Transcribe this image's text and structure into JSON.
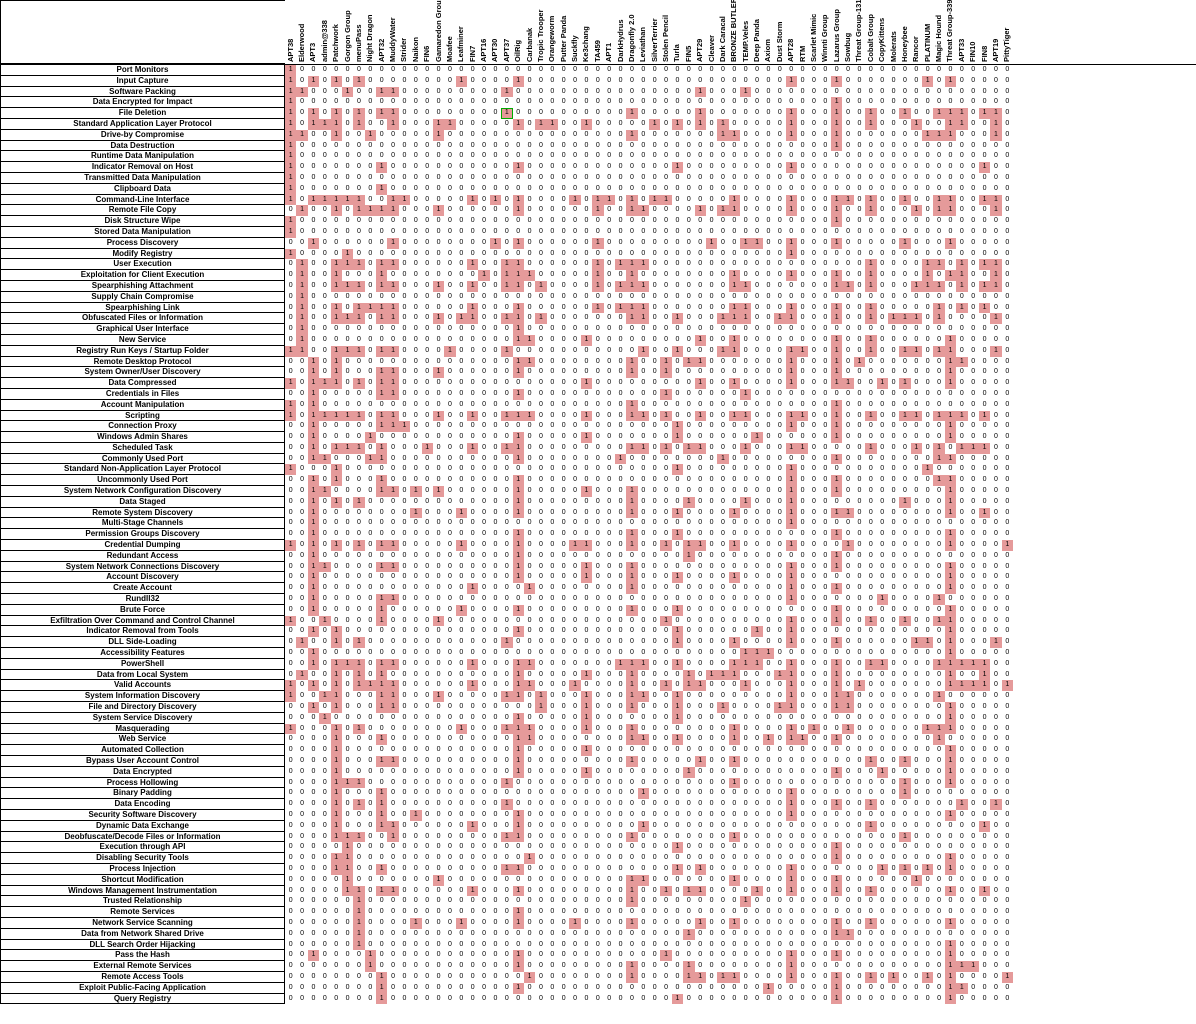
{
  "type": "heatmap",
  "colors": {
    "hit": "#e59a9a",
    "miss": "#ffffff",
    "border": "#000000",
    "highlight_border": "#00aa00",
    "text": "#000000"
  },
  "columns": [
    "APT38",
    "Elderwood",
    "APT3",
    "admin@338",
    "Patchwork",
    "Gorgon Group",
    "menuPass",
    "Night Dragon",
    "APT32",
    "MuddyWater",
    "Strider",
    "Naikon",
    "FIN6",
    "Gamaredon Group",
    "Moafee",
    "Leafminer",
    "FIN7",
    "APT16",
    "APT30",
    "APT37",
    "OilRig",
    "Carbanak",
    "Tropic Trooper",
    "Orangeworm",
    "Putter Panda",
    "Suckfly",
    "Ke3chang",
    "TA459",
    "APT1",
    "DarkHydrus",
    "Dragonfly 2.0",
    "Leviathan",
    "SilverTerrier",
    "Stolen Pencil",
    "Turla",
    "FIN5",
    "APT29",
    "Cleaver",
    "Dark Caracal",
    "BRONZE BUTLER",
    "TEMP.Veles",
    "Deep Panda",
    "Axiom",
    "Dust Storm",
    "APT28",
    "RTM",
    "Scarlet Mimic",
    "Winnti Group",
    "Lazarus Group",
    "Sowbug",
    "Threat Group-1314",
    "Cobalt Group",
    "CopyKittens",
    "Molerats",
    "Honeybee",
    "Rancor",
    "PLATINUM",
    "Magic Hound",
    "Threat Group-3390",
    "APT33",
    "FIN10",
    "FIN8",
    "APT19",
    "PittyTiger"
  ],
  "row_labels": [
    "Port Monitors",
    "Input Capture",
    "Software Packing",
    "Data Encrypted for Impact",
    "File Deletion",
    "Standard Application Layer Protocol",
    "Drive-by Compromise",
    "Data Destruction",
    "Runtime Data Manipulation",
    "Indicator Removal on Host",
    "Transmitted Data Manipulation",
    "Clipboard Data",
    "Command-Line Interface",
    "Remote File Copy",
    "Disk Structure Wipe",
    "Stored Data Manipulation",
    "Process Discovery",
    "Modify Registry",
    "User Execution",
    "Exploitation for Client Execution",
    "Spearphishing Attachment",
    "Supply Chain Compromise",
    "Spearphishing Link",
    "Obfuscated Files or Information",
    "Graphical User Interface",
    "New Service",
    "Registry Run Keys / Startup Folder",
    "Remote Desktop Protocol",
    "System Owner/User Discovery",
    "Data Compressed",
    "Credentials in Files",
    "Account Manipulation",
    "Scripting",
    "Connection Proxy",
    "Windows Admin Shares",
    "Scheduled Task",
    "Commonly Used Port",
    "Standard Non-Application Layer Protocol",
    "Uncommonly Used Port",
    "System Network Configuration Discovery",
    "Data Staged",
    "Remote System Discovery",
    "Multi-Stage Channels",
    "Permission Groups Discovery",
    "Credential Dumping",
    "Redundant Access",
    "System Network Connections Discovery",
    "Account Discovery",
    "Create Account",
    "Rundll32",
    "Brute Force",
    "Exfiltration Over Command and Control Channel",
    "Indicator Removal from Tools",
    "DLL Side-Loading",
    "Accessibility Features",
    "PowerShell",
    "Data from Local System",
    "Valid Accounts",
    "System Information Discovery",
    "File and Directory Discovery",
    "System Service Discovery",
    "Masquerading",
    "Web Service",
    "Automated Collection",
    "Bypass User Account Control",
    "Data Encrypted",
    "Process Hollowing",
    "Binary Padding",
    "Data Encoding",
    "Security Software Discovery",
    "Dynamic Data Exchange",
    "Deobfuscate/Decode Files or Information",
    "Execution through API",
    "Disabling Security Tools",
    "Process Injection",
    "Shortcut Modification",
    "Windows Management Instrumentation",
    "Trusted Relationship",
    "Remote Services",
    "Network Service Scanning",
    "Data from Network Shared Drive",
    "DLL Search Order Hijacking",
    "Pass the Hash",
    "External Remote Services",
    "Remote Access Tools",
    "Exploit Public-Facing Application",
    "Query Registry"
  ],
  "highlight": {
    "row": 4,
    "col": 19
  },
  "hits": {
    "0": [
      0
    ],
    "1": [
      0,
      2,
      4,
      6,
      15,
      20,
      44,
      48,
      56,
      58
    ],
    "2": [
      0,
      1,
      5,
      8,
      9,
      19,
      36,
      40
    ],
    "3": [
      0,
      48
    ],
    "4": [
      0,
      2,
      4,
      6,
      8,
      9,
      19,
      30,
      36,
      44,
      48,
      51,
      54,
      57,
      58,
      59,
      61,
      62
    ],
    "5": [
      0,
      2,
      3,
      4,
      6,
      9,
      13,
      14,
      20,
      22,
      23,
      26,
      32,
      34,
      36,
      38,
      44,
      48,
      51,
      55,
      58,
      59,
      62
    ],
    "6": [
      0,
      1,
      4,
      7,
      13,
      30,
      38,
      39,
      44,
      48,
      56,
      57,
      58,
      62
    ],
    "7": [
      0,
      48
    ],
    "8": [
      0
    ],
    "9": [
      0,
      8,
      20,
      34,
      44,
      61
    ],
    "10": [
      0
    ],
    "11": [
      0,
      8
    ],
    "12": [
      0,
      2,
      3,
      4,
      5,
      6,
      9,
      10,
      16,
      18,
      20,
      25,
      27,
      28,
      30,
      32,
      33,
      39,
      44,
      48,
      49,
      51,
      54,
      57,
      58,
      61,
      62
    ],
    "13": [
      1,
      4,
      6,
      7,
      8,
      9,
      13,
      20,
      27,
      30,
      31,
      36,
      38,
      39,
      44,
      48,
      51,
      55,
      57,
      58,
      62
    ],
    "14": [
      0,
      48
    ],
    "15": [
      0
    ],
    "16": [
      2,
      9,
      18,
      20,
      27,
      37,
      40,
      41,
      44,
      48,
      54,
      58
    ],
    "17": [
      0,
      5,
      44
    ],
    "18": [
      1,
      4,
      5,
      6,
      8,
      9,
      16,
      19,
      20,
      27,
      29,
      30,
      31,
      51,
      56,
      57,
      59,
      61,
      62
    ],
    "19": [
      1,
      4,
      8,
      17,
      19,
      20,
      21,
      27,
      30,
      39,
      44,
      48,
      51,
      56,
      58,
      59,
      62
    ],
    "20": [
      1,
      4,
      5,
      6,
      8,
      9,
      13,
      16,
      19,
      20,
      22,
      27,
      29,
      30,
      31,
      39,
      40,
      48,
      49,
      51,
      55,
      56,
      57,
      59,
      61,
      62
    ],
    "21": [
      1
    ],
    "22": [
      1,
      4,
      6,
      7,
      8,
      9,
      16,
      20,
      27,
      29,
      30,
      31,
      39,
      40,
      44,
      48,
      51,
      57,
      59,
      61
    ],
    "23": [
      1,
      4,
      5,
      6,
      8,
      9,
      13,
      15,
      16,
      19,
      20,
      22,
      30,
      31,
      34,
      38,
      39,
      40,
      43,
      44,
      48,
      51,
      53,
      54,
      55,
      57,
      62
    ],
    "24": [
      1,
      20
    ],
    "25": [
      1,
      20,
      21,
      26,
      36,
      39,
      48,
      51,
      58
    ],
    "26": [
      0,
      1,
      4,
      5,
      6,
      8,
      9,
      14,
      19,
      31,
      34,
      38,
      39,
      44,
      45,
      48,
      51,
      54,
      55,
      57,
      58,
      62
    ],
    "27": [
      2,
      4,
      20,
      21,
      30,
      33,
      35,
      36,
      44,
      48,
      50,
      58,
      59
    ],
    "28": [
      2,
      4,
      8,
      9,
      13,
      20,
      30,
      33,
      44,
      48,
      58
    ],
    "29": [
      0,
      2,
      3,
      4,
      6,
      8,
      9,
      26,
      36,
      39,
      44,
      48,
      49,
      52,
      54,
      58
    ],
    "30": [
      2,
      8,
      9,
      20,
      33,
      40
    ],
    "31": [
      0,
      2,
      30,
      48
    ],
    "32": [
      0,
      2,
      3,
      4,
      5,
      6,
      8,
      9,
      13,
      16,
      19,
      20,
      21,
      26,
      30,
      31,
      33,
      36,
      39,
      40,
      44,
      45,
      48,
      51,
      54,
      55,
      57,
      58,
      59,
      61
    ],
    "33": [
      2,
      8,
      9,
      10,
      34,
      44,
      48,
      58
    ],
    "34": [
      2,
      7,
      20,
      26,
      34,
      41,
      48,
      58
    ],
    "35": [
      2,
      4,
      5,
      6,
      8,
      12,
      16,
      19,
      20,
      30,
      31,
      33,
      35,
      36,
      40,
      44,
      45,
      51,
      55,
      57,
      59,
      60,
      61
    ],
    "36": [
      2,
      3,
      7,
      8,
      20,
      29,
      38,
      48,
      57,
      58
    ],
    "37": [
      0,
      4,
      34,
      44,
      56
    ],
    "38": [
      2,
      4,
      8,
      20,
      44,
      48,
      57,
      58
    ],
    "39": [
      2,
      3,
      8,
      9,
      11,
      13,
      20,
      26,
      30,
      44,
      48,
      58
    ],
    "40": [
      2,
      4,
      6,
      20,
      30,
      35,
      40,
      44,
      54,
      58
    ],
    "41": [
      2,
      11,
      15,
      20,
      30,
      34,
      39,
      44,
      48,
      49,
      58,
      61
    ],
    "42": [
      2,
      44
    ],
    "43": [
      2,
      20,
      30,
      34,
      48,
      58
    ],
    "44": [
      0,
      2,
      4,
      6,
      8,
      9,
      15,
      20,
      25,
      26,
      30,
      33,
      35,
      36,
      39,
      44,
      49,
      58,
      63
    ],
    "45": [
      2,
      20,
      35,
      48
    ],
    "46": [
      2,
      3,
      8,
      9,
      20,
      26,
      30,
      44,
      48,
      58
    ],
    "47": [
      2,
      20,
      26,
      30,
      34,
      39,
      44,
      58
    ],
    "48": [
      2,
      16,
      21,
      30,
      44,
      48,
      58
    ],
    "49": [
      2,
      8,
      9,
      44,
      52,
      57
    ],
    "50": [
      2,
      8,
      15,
      20,
      30,
      34,
      48,
      58
    ],
    "51": [
      0,
      3,
      8,
      13,
      33,
      44,
      48,
      51,
      54,
      57,
      58
    ],
    "52": [
      2,
      4,
      20,
      34,
      41,
      44,
      58
    ],
    "53": [
      1,
      4,
      6,
      19,
      34,
      39,
      44,
      48,
      55,
      56,
      58,
      62
    ],
    "54": [
      2,
      40,
      41,
      42,
      58
    ],
    "55": [
      2,
      4,
      5,
      6,
      8,
      9,
      16,
      20,
      21,
      29,
      30,
      31,
      34,
      39,
      40,
      41,
      44,
      48,
      51,
      52,
      57,
      58,
      59,
      60,
      61
    ],
    "56": [
      1,
      4,
      6,
      8,
      20,
      26,
      30,
      35,
      37,
      38,
      39,
      43,
      44,
      48,
      58,
      61
    ],
    "57": [
      0,
      2,
      4,
      6,
      8,
      7,
      9,
      16,
      20,
      21,
      25,
      30,
      33,
      35,
      36,
      40,
      44,
      48,
      50,
      58,
      59,
      60,
      61,
      63
    ],
    "58": [
      0,
      3,
      4,
      8,
      9,
      13,
      19,
      20,
      22,
      26,
      30,
      31,
      34,
      44,
      48,
      49,
      57
    ],
    "59": [
      2,
      4,
      8,
      9,
      22,
      26,
      30,
      34,
      38,
      44,
      48,
      49,
      58,
      43
    ],
    "60": [
      3,
      20,
      26,
      34,
      58
    ],
    "61": [
      0,
      4,
      6,
      15,
      19,
      20,
      21,
      26,
      30,
      39,
      44,
      46,
      49,
      56,
      57,
      58
    ],
    "62": [
      4,
      8,
      20,
      21,
      30,
      31,
      34,
      39,
      44,
      45,
      48,
      57,
      42
    ],
    "63": [
      4,
      20,
      26,
      58
    ],
    "64": [
      4,
      8,
      9,
      20,
      30,
      36,
      39,
      51,
      54,
      58
    ],
    "65": [
      4,
      20,
      26,
      35,
      48,
      52,
      58
    ],
    "66": [
      4,
      5,
      6,
      19,
      54,
      58,
      39
    ],
    "67": [
      4,
      8,
      44,
      31,
      54
    ],
    "68": [
      4,
      6,
      8,
      19,
      44,
      48,
      51,
      59,
      62
    ],
    "69": [
      4,
      8,
      11,
      20,
      44,
      58
    ],
    "70": [
      4,
      8,
      9,
      16,
      20,
      31,
      51,
      61
    ],
    "71": [
      4,
      5,
      6,
      9,
      19,
      20,
      30,
      39,
      54
    ],
    "72": [
      5,
      34,
      48
    ],
    "73": [
      4,
      5,
      21,
      48,
      58
    ],
    "74": [
      4,
      5,
      8,
      19,
      20,
      34,
      36,
      44,
      52,
      54,
      56,
      58
    ],
    "75": [
      5,
      13,
      30,
      31,
      39,
      44,
      48,
      55
    ],
    "76": [
      5,
      6,
      8,
      9,
      16,
      20,
      30,
      33,
      35,
      36,
      41,
      44,
      48,
      51,
      58,
      61
    ],
    "77": [
      6,
      30,
      40
    ],
    "78": [
      6,
      20
    ],
    "79": [
      6,
      11,
      15,
      20,
      25,
      30,
      36,
      39,
      48,
      51,
      58
    ],
    "80": [
      6,
      35,
      48,
      49
    ],
    "81": [
      6,
      58
    ],
    "82": [
      2,
      7,
      20,
      33,
      44,
      48,
      58
    ],
    "83": [
      7,
      20,
      30,
      35,
      44,
      58,
      59,
      60
    ],
    "84": [
      8,
      21,
      30,
      35,
      36,
      38,
      39,
      44,
      48,
      51,
      53,
      56,
      58,
      63
    ],
    "85": [
      8,
      20,
      42,
      48,
      58,
      59
    ],
    "86": [
      8,
      34,
      48,
      58
    ]
  }
}
